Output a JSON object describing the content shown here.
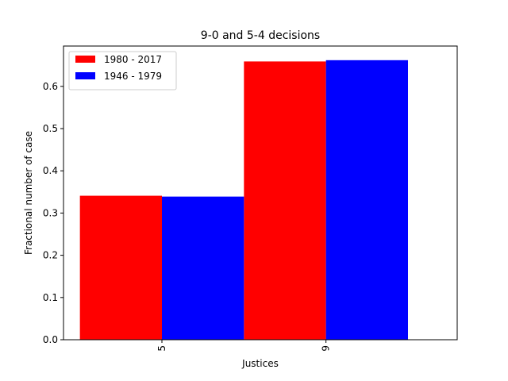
{
  "chart_data": {
    "type": "bar",
    "title": "9-0 and 5-4 decisions",
    "xlabel": "Justices",
    "ylabel": "Fractional number of case",
    "categories": [
      "5",
      "9"
    ],
    "series": [
      {
        "name": "1980 - 2017",
        "color": "#ff0000",
        "values": [
          0.341,
          0.659
        ]
      },
      {
        "name": "1946 - 1979",
        "color": "#0000ff",
        "values": [
          0.339,
          0.662
        ]
      }
    ],
    "ylim": [
      0,
      0.6955
    ],
    "yticks": [
      0.0,
      0.1,
      0.2,
      0.3,
      0.4,
      0.5,
      0.6
    ],
    "ytick_labels": [
      "0.0",
      "0.1",
      "0.2",
      "0.3",
      "0.4",
      "0.5",
      "0.6"
    ],
    "xlim": [
      -0.6,
      1.8
    ],
    "bar_width": 0.5,
    "grid": false,
    "legend": "top-left",
    "tick_rotation": 90
  }
}
